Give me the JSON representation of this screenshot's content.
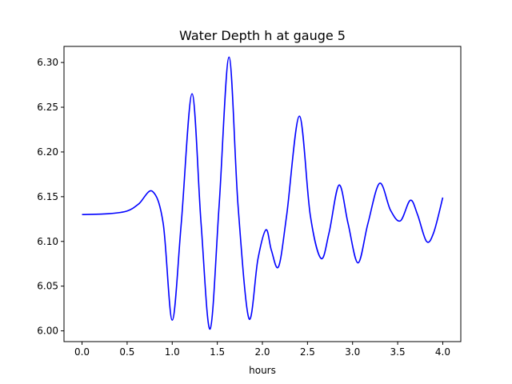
{
  "chart_data": {
    "type": "line",
    "title": "Water Depth h at gauge 5",
    "xlabel": "hours",
    "ylabel": "",
    "xlim": [
      -0.2,
      4.2
    ],
    "ylim": [
      5.988,
      6.318
    ],
    "xticks": [
      0.0,
      0.5,
      1.0,
      1.5,
      2.0,
      2.5,
      3.0,
      3.5,
      4.0
    ],
    "xtick_labels": [
      "0.0",
      "0.5",
      "1.0",
      "1.5",
      "2.0",
      "2.5",
      "3.0",
      "3.5",
      "4.0"
    ],
    "yticks": [
      6.0,
      6.05,
      6.1,
      6.15,
      6.2,
      6.25,
      6.3
    ],
    "ytick_labels": [
      "6.00",
      "6.05",
      "6.10",
      "6.15",
      "6.20",
      "6.25",
      "6.30"
    ],
    "grid": false,
    "line_color": "#0000ff",
    "series": [
      {
        "x": [
          0.0,
          0.3,
          0.5,
          0.63,
          0.78,
          0.9,
          1.0,
          1.1,
          1.22,
          1.32,
          1.42,
          1.52,
          1.63,
          1.73,
          1.85,
          1.95,
          2.04,
          2.1,
          2.18,
          2.27,
          2.41,
          2.53,
          2.65,
          2.74,
          2.85,
          2.95,
          3.06,
          3.17,
          3.3,
          3.42,
          3.53,
          3.64,
          3.72,
          3.82,
          3.9,
          4.0
        ],
        "y": [
          6.13,
          6.131,
          6.134,
          6.142,
          6.156,
          6.12,
          6.012,
          6.12,
          6.265,
          6.12,
          6.002,
          6.14,
          6.306,
          6.14,
          6.014,
          6.08,
          6.113,
          6.09,
          6.072,
          6.13,
          6.24,
          6.13,
          6.081,
          6.11,
          6.163,
          6.12,
          6.076,
          6.12,
          6.165,
          6.135,
          6.123,
          6.146,
          6.13,
          6.1,
          6.11,
          6.149
        ]
      }
    ]
  }
}
